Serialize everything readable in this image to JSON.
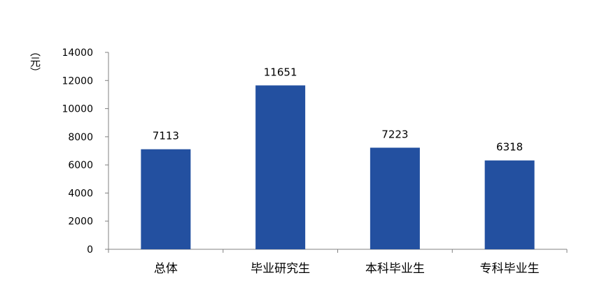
{
  "chart_data": {
    "type": "bar",
    "categories": [
      "总体",
      "毕业研究生",
      "本科毕业生",
      "专科毕业生"
    ],
    "values": [
      7113,
      11651,
      7223,
      6318
    ],
    "data_labels": [
      "7113",
      "11651",
      "7223",
      "6318"
    ],
    "title": "",
    "xlabel": "",
    "ylabel": "（元）",
    "ylim": [
      0,
      14000
    ],
    "yticks": [
      0,
      2000,
      4000,
      6000,
      8000,
      10000,
      12000,
      14000
    ],
    "grid": false,
    "legend": "none",
    "bar_color": "#2350A0",
    "axis_color": "#808080"
  }
}
